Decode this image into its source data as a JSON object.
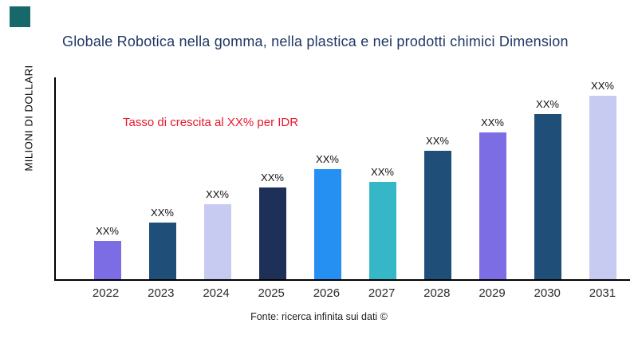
{
  "colors": {
    "logo": "#16686b",
    "title": "#1f3864",
    "annotation": "#e8192c",
    "axis": "#000000"
  },
  "footer": {
    "source": "Fonte: ricerca infinita sui dati ©"
  },
  "chart_data": {
    "type": "bar",
    "title": "Globale Robotica nella gomma, nella plastica e nei prodotti chimici Dimension",
    "ylabel": "MILIONI DI DOLLARI",
    "xlabel": "",
    "annotation": "Tasso di crescita al XX% per IDR",
    "categories": [
      "2022",
      "2023",
      "2024",
      "2025",
      "2026",
      "2027",
      "2028",
      "2029",
      "2030",
      "2031"
    ],
    "values": [
      21,
      31,
      41,
      50,
      60,
      53,
      70,
      80,
      90,
      100
    ],
    "bar_labels": [
      "XX%",
      "XX%",
      "XX%",
      "XX%",
      "XX%",
      "XX%",
      "XX%",
      "XX%",
      "XX%",
      "XX%"
    ],
    "bar_colors": [
      "#7d6de4",
      "#1f4e79",
      "#c7cbf1",
      "#1e3058",
      "#2590f2",
      "#36b7c8",
      "#1f4e79",
      "#7d6de4",
      "#1f4e79",
      "#c7cbf1"
    ],
    "ylim": [
      0,
      110
    ],
    "grid": false,
    "legend": "none"
  }
}
